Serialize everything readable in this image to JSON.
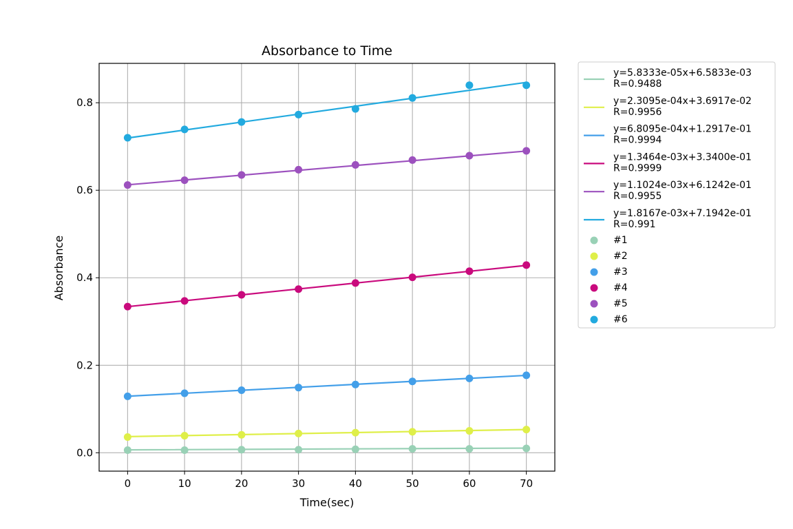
{
  "chart_data": {
    "type": "scatter",
    "title": "Absorbance to Time",
    "xlabel": "Time(sec)",
    "ylabel": "Absorbance",
    "xlim": [
      -5,
      75
    ],
    "ylim": [
      -0.042,
      0.89
    ],
    "xticks": [
      0,
      10,
      20,
      30,
      40,
      50,
      60,
      70
    ],
    "xtick_labels": [
      "0",
      "10",
      "20",
      "30",
      "40",
      "50",
      "60",
      "70"
    ],
    "yticks": [
      0.0,
      0.2,
      0.4,
      0.6,
      0.8
    ],
    "ytick_labels": [
      "0.0",
      "0.2",
      "0.4",
      "0.6",
      "0.8"
    ],
    "grid": true,
    "legend_position": "outside-right",
    "x": [
      0,
      10,
      20,
      30,
      40,
      50,
      60,
      70
    ],
    "series": [
      {
        "name": "#1",
        "color": "#99d1b6",
        "values": [
          0.006,
          0.006,
          0.007,
          0.007,
          0.008,
          0.009,
          0.009,
          0.01
        ],
        "fit": {
          "slope": 5.8333e-05,
          "intercept": 0.0065833,
          "label": "y=5.8333e-05x+6.5833e-03",
          "r_label": "R=0.9488"
        }
      },
      {
        "name": "#2",
        "color": "#dfef49",
        "values": [
          0.036,
          0.039,
          0.041,
          0.044,
          0.046,
          0.048,
          0.05,
          0.053
        ],
        "fit": {
          "slope": 0.00023095,
          "intercept": 0.036917,
          "label": "y=2.3095e-04x+3.6917e-02",
          "r_label": "R=0.9956"
        }
      },
      {
        "name": "#3",
        "color": "#439fe9",
        "values": [
          0.129,
          0.136,
          0.143,
          0.149,
          0.156,
          0.163,
          0.17,
          0.177
        ],
        "fit": {
          "slope": 0.00068095,
          "intercept": 0.12917,
          "label": "y=6.8095e-04x+1.2917e-01",
          "r_label": "R=0.9994"
        }
      },
      {
        "name": "#4",
        "color": "#c90a7d",
        "values": [
          0.334,
          0.347,
          0.361,
          0.374,
          0.388,
          0.401,
          0.415,
          0.429
        ],
        "fit": {
          "slope": 0.0013464,
          "intercept": 0.334,
          "label": "y=1.3464e-03x+3.3400e-01",
          "r_label": "R=0.9999"
        }
      },
      {
        "name": "#5",
        "color": "#9c51be",
        "values": [
          0.612,
          0.623,
          0.635,
          0.647,
          0.658,
          0.669,
          0.679,
          0.69
        ],
        "fit": {
          "slope": 0.0011024,
          "intercept": 0.61242,
          "label": "y=1.1024e-03x+6.1242e-01",
          "r_label": "R=0.9955"
        }
      },
      {
        "name": "#6",
        "color": "#22aadf",
        "values": [
          0.72,
          0.739,
          0.756,
          0.773,
          0.786,
          0.811,
          0.84,
          0.84
        ],
        "fit": {
          "slope": 0.0018167,
          "intercept": 0.71942,
          "label": "y=1.8167e-03x+7.1942e-01",
          "r_label": "R=0.991"
        }
      }
    ]
  }
}
